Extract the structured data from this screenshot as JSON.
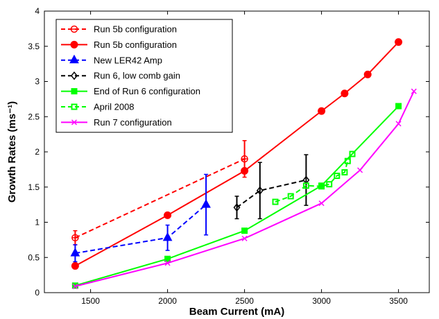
{
  "chart_data": {
    "type": "line",
    "xlabel": "Beam Current (mA)",
    "ylabel": "Growth Rates (ms⁻¹)",
    "xlim": [
      1200,
      3700
    ],
    "ylim": [
      0,
      4
    ],
    "xticks": [
      "1500",
      "2000",
      "2500",
      "3000",
      "3500"
    ],
    "xtick_values": [
      1500,
      2000,
      2500,
      3000,
      3500
    ],
    "yticks": [
      "0",
      "0.5",
      "1",
      "1.5",
      "2",
      "2.5",
      "3",
      "3.5",
      "4"
    ],
    "ytick_values": [
      0,
      0.5,
      1,
      1.5,
      2,
      2.5,
      3,
      3.5,
      4
    ],
    "grid": false,
    "legend_position": "top-left",
    "series": [
      {
        "name": "Run 5b configuration",
        "color": "#ff0000",
        "line_style": "dashed",
        "marker": "circle-open-bar",
        "x": [
          1400,
          2500
        ],
        "y": [
          0.78,
          1.9
        ],
        "err": [
          0.1,
          0.26
        ]
      },
      {
        "name": "Run 5b configuration",
        "color": "#ff0000",
        "line_style": "solid",
        "marker": "circle-filled",
        "x": [
          1400,
          2000,
          2500,
          3000,
          3150,
          3300,
          3500
        ],
        "y": [
          0.38,
          1.1,
          1.73,
          2.58,
          2.83,
          3.1,
          3.56
        ]
      },
      {
        "name": "New LER42 Amp",
        "color": "#0000ff",
        "line_style": "dashed",
        "marker": "triangle",
        "x": [
          1400,
          2000,
          2250
        ],
        "y": [
          0.56,
          0.78,
          1.25
        ],
        "err": [
          0.12,
          0.18,
          0.43
        ]
      },
      {
        "name": "Run 6, low comb gain",
        "color": "#000000",
        "line_style": "dashed",
        "marker": "diamond-open",
        "x": [
          2450,
          2600,
          2900
        ],
        "y": [
          1.21,
          1.45,
          1.6
        ],
        "err": [
          0.16,
          0.4,
          0.36
        ]
      },
      {
        "name": "End of Run 6 configuration",
        "color": "#00ff00",
        "line_style": "solid",
        "marker": "square-filled",
        "x": [
          1400,
          2000,
          2500,
          3000,
          3500
        ],
        "y": [
          0.1,
          0.48,
          0.88,
          1.52,
          2.65
        ]
      },
      {
        "name": "April 2008",
        "color": "#00ff00",
        "line_style": "dashed",
        "marker": "square-open",
        "x": [
          2700,
          2800,
          2900,
          3000,
          3050,
          3100,
          3150,
          3170,
          3200
        ],
        "y": [
          1.29,
          1.37,
          1.52,
          1.51,
          1.54,
          1.66,
          1.71,
          1.87,
          1.97
        ]
      },
      {
        "name": "Run 7 configuration",
        "color": "#ff00ff",
        "line_style": "solid",
        "marker": "x",
        "x": [
          1400,
          2000,
          2500,
          3000,
          3250,
          3500,
          3600
        ],
        "y": [
          0.09,
          0.42,
          0.77,
          1.27,
          1.74,
          2.4,
          2.86
        ]
      }
    ]
  }
}
